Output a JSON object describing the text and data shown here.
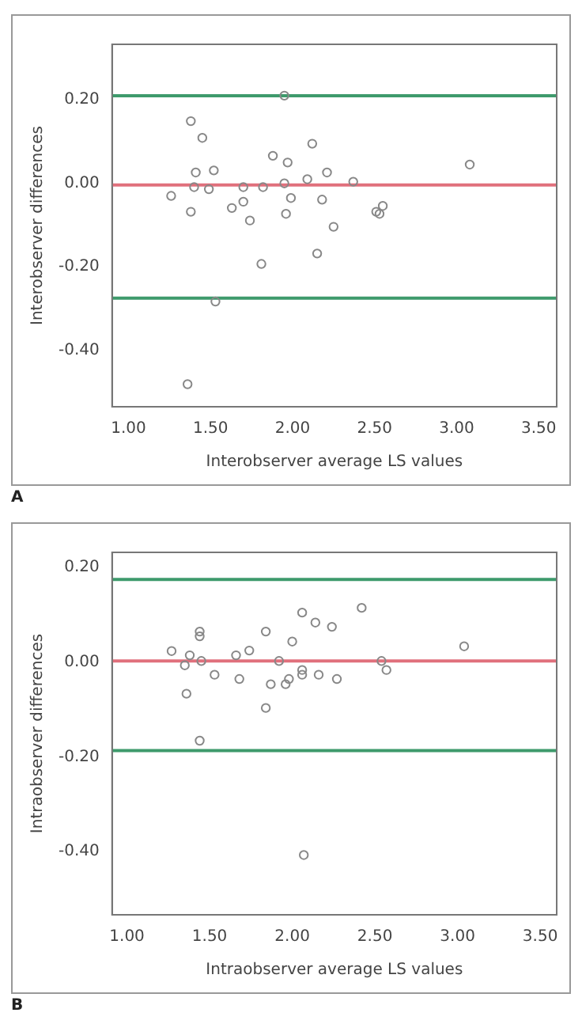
{
  "chart_data": [
    {
      "type": "scatter",
      "xlabel": "Interobserver average LS values",
      "ylabel": "Interobserver differences",
      "annotations": [
        "A"
      ],
      "marker": "circle",
      "grid": false,
      "legend": false,
      "xlim": [
        0.9,
        3.61
      ],
      "ylim": [
        -0.535,
        0.333
      ],
      "xticks": [
        {
          "value": 1,
          "label": "1.00"
        },
        {
          "value": 1.5,
          "label": "1.50"
        },
        {
          "value": 2,
          "label": "2.00"
        },
        {
          "value": 2.5,
          "label": "2.50"
        },
        {
          "value": 3,
          "label": "3.00"
        },
        {
          "value": 3.5,
          "label": "3.50"
        }
      ],
      "yticks": [
        {
          "value": -0.4,
          "label": "-0.40"
        },
        {
          "value": -0.2,
          "label": "-0.20"
        },
        {
          "value": 0,
          "label": "0.00"
        },
        {
          "value": 0.2,
          "label": "0.20"
        }
      ],
      "ref_lines": [
        {
          "axis": "y",
          "value": 0.21,
          "color": "#3e9a6c"
        },
        {
          "axis": "y",
          "value": -0.004,
          "color": "#e0707c"
        },
        {
          "axis": "y",
          "value": -0.275,
          "color": "#3e9a6c"
        }
      ],
      "series": [
        {
          "color": "#888888",
          "x": [
            1.95,
            1.38,
            1.45,
            2.12,
            1.88,
            1.97,
            3.08,
            1.41,
            1.52,
            2.21,
            2.09,
            2.37,
            1.95,
            1.4,
            1.49,
            1.7,
            1.82,
            1.26,
            1.99,
            2.18,
            1.7,
            1.63,
            1.38,
            1.96,
            2.51,
            2.53,
            2.55,
            1.74,
            2.25,
            2.15,
            1.81,
            1.53,
            1.36
          ],
          "values": [
            0.21,
            0.149,
            0.109,
            0.095,
            0.066,
            0.05,
            0.045,
            0.026,
            0.031,
            0.026,
            0.01,
            0.004,
            0,
            -0.009,
            -0.014,
            -0.009,
            -0.009,
            -0.03,
            -0.035,
            -0.039,
            -0.044,
            -0.059,
            -0.068,
            -0.073,
            -0.068,
            -0.073,
            -0.054,
            -0.089,
            -0.104,
            -0.168,
            -0.193,
            -0.283,
            -0.481
          ]
        }
      ]
    },
    {
      "type": "scatter",
      "xlabel": "Intraobserver average LS values",
      "ylabel": "Intraobserver differences",
      "annotations": [
        "B"
      ],
      "marker": "circle",
      "grid": false,
      "legend": false,
      "xlim": [
        0.91,
        3.6
      ],
      "ylim": [
        -0.533,
        0.231
      ],
      "xticks": [
        {
          "value": 1,
          "label": "1.00"
        },
        {
          "value": 1.5,
          "label": "1.50"
        },
        {
          "value": 2,
          "label": "2.00"
        },
        {
          "value": 2.5,
          "label": "2.50"
        },
        {
          "value": 3,
          "label": "3.00"
        },
        {
          "value": 3.5,
          "label": "3.50"
        }
      ],
      "yticks": [
        {
          "value": -0.4,
          "label": "-0.40"
        },
        {
          "value": -0.2,
          "label": "-0.20"
        },
        {
          "value": 0,
          "label": "0.00"
        },
        {
          "value": 0.2,
          "label": "0.20"
        }
      ],
      "ref_lines": [
        {
          "axis": "y",
          "value": 0.174,
          "color": "#3e9a6c"
        },
        {
          "axis": "y",
          "value": 0.002,
          "color": "#e0707c"
        },
        {
          "axis": "y",
          "value": -0.187,
          "color": "#3e9a6c"
        }
      ],
      "series": [
        {
          "color": "#888888",
          "x": [
            2.42,
            2.06,
            2.14,
            2.24,
            1.44,
            1.84,
            1.44,
            2,
            3.04,
            1.27,
            1.74,
            1.38,
            1.66,
            1.45,
            1.92,
            2.54,
            1.35,
            2.57,
            2.06,
            2.06,
            1.53,
            2.16,
            1.68,
            1.98,
            2.27,
            1.87,
            1.96,
            1.36,
            1.84,
            1.44,
            2.07
          ],
          "values": [
            0.114,
            0.104,
            0.083,
            0.074,
            0.064,
            0.064,
            0.054,
            0.043,
            0.033,
            0.023,
            0.024,
            0.014,
            0.014,
            0.002,
            0.002,
            0.002,
            -0.007,
            -0.017,
            -0.017,
            -0.027,
            -0.027,
            -0.027,
            -0.036,
            -0.036,
            -0.036,
            -0.047,
            -0.047,
            -0.067,
            -0.097,
            -0.166,
            -0.407
          ]
        }
      ]
    }
  ]
}
